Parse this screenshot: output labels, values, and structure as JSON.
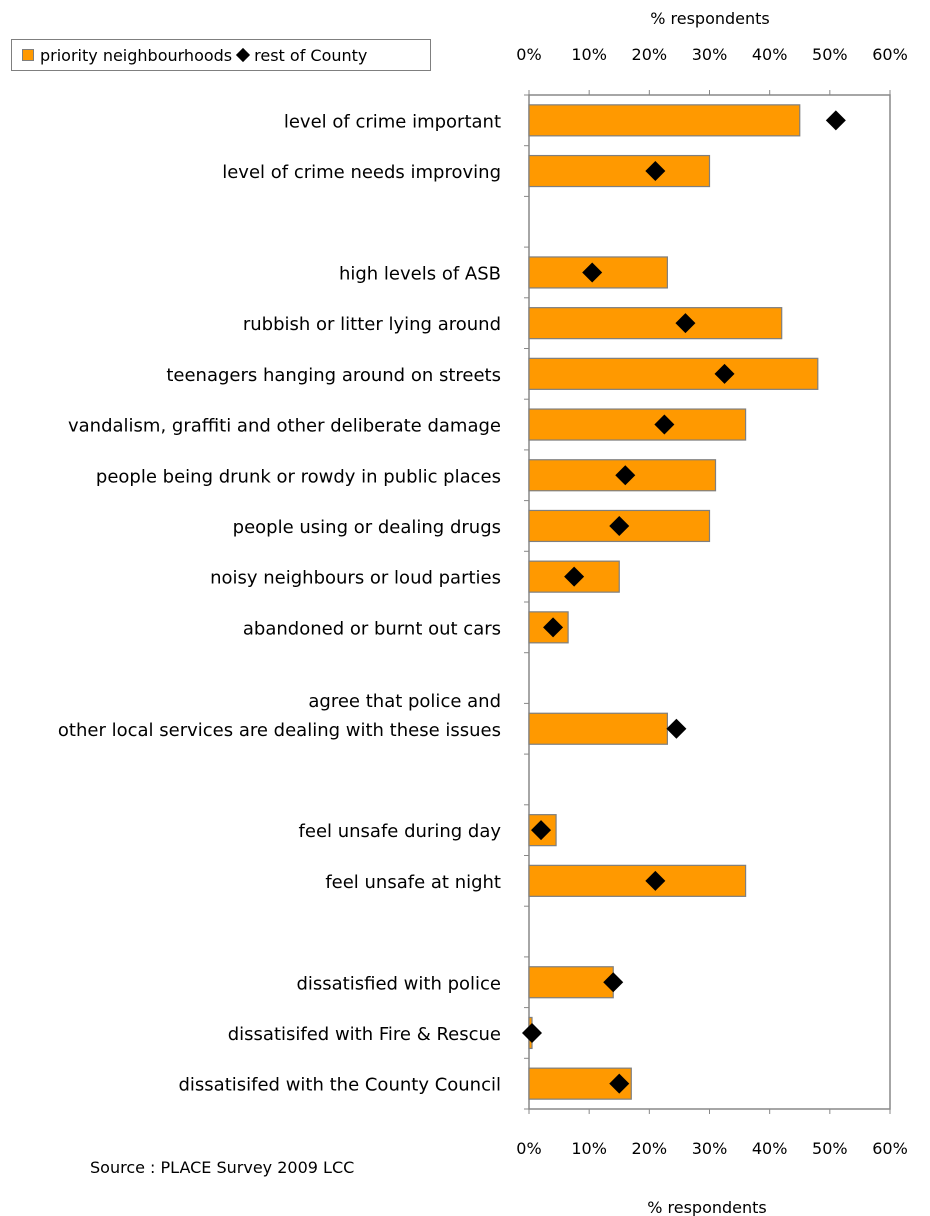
{
  "legend": {
    "series1": "priority neighbourhoods",
    "series2": "rest of County"
  },
  "source": "Source : PLACE Survey 2009 LCC",
  "chart_data": {
    "type": "bar",
    "orientation": "horizontal",
    "xlabel_top": "% respondents",
    "xlabel_bottom": "% respondents",
    "xlim": [
      0,
      60
    ],
    "xticks": [
      "0%",
      "10%",
      "20%",
      "30%",
      "40%",
      "50%",
      "60%"
    ],
    "grid": false,
    "legend_position": "top-left",
    "categories": [
      "level of crime important",
      "level of crime needs improving",
      "",
      "high levels of ASB",
      "rubbish or litter lying around",
      "teenagers hanging around on streets",
      "vandalism, graffiti and other deliberate damage",
      "people being drunk or rowdy in public places",
      "people using or dealing drugs",
      "noisy neighbours or loud parties",
      "abandoned or burnt out cars",
      "",
      "agree that police and other local services are dealing with these issues",
      "",
      "feel unsafe during day",
      "feel unsafe at night",
      "",
      "dissatisfied with police",
      "dissatisifed with Fire & Rescue",
      "dissatisifed with the County Council"
    ],
    "label_lines": [
      [
        "level of crime important"
      ],
      [
        "level of crime needs improving"
      ],
      [],
      [
        "high levels of ASB"
      ],
      [
        "rubbish or litter lying around"
      ],
      [
        "teenagers hanging around on streets"
      ],
      [
        "vandalism, graffiti and other deliberate damage"
      ],
      [
        "people being drunk or rowdy in public places"
      ],
      [
        "people using or dealing drugs"
      ],
      [
        "noisy neighbours or loud parties"
      ],
      [
        "abandoned or burnt out cars"
      ],
      [],
      [
        "agree that police and",
        "other local services are dealing with these issues"
      ],
      [],
      [
        "feel unsafe during day"
      ],
      [
        "feel unsafe at night"
      ],
      [],
      [
        "dissatisfied with police"
      ],
      [
        "dissatisifed with Fire & Rescue"
      ],
      [
        "dissatisifed with the County Council"
      ]
    ],
    "series": [
      {
        "name": "priority neighbourhoods",
        "color": "#ff9900",
        "values": [
          45,
          30,
          null,
          23,
          42,
          48,
          36,
          31,
          30,
          15,
          6.5,
          null,
          23,
          null,
          4.5,
          36,
          null,
          14,
          0.5,
          17
        ]
      },
      {
        "name": "rest of County",
        "color": "#000000",
        "marker": "diamond",
        "values": [
          51,
          21,
          null,
          10.5,
          26,
          32.5,
          22.5,
          16,
          15,
          7.5,
          4,
          null,
          24.5,
          null,
          2,
          21,
          null,
          14,
          0.5,
          15
        ]
      }
    ]
  }
}
